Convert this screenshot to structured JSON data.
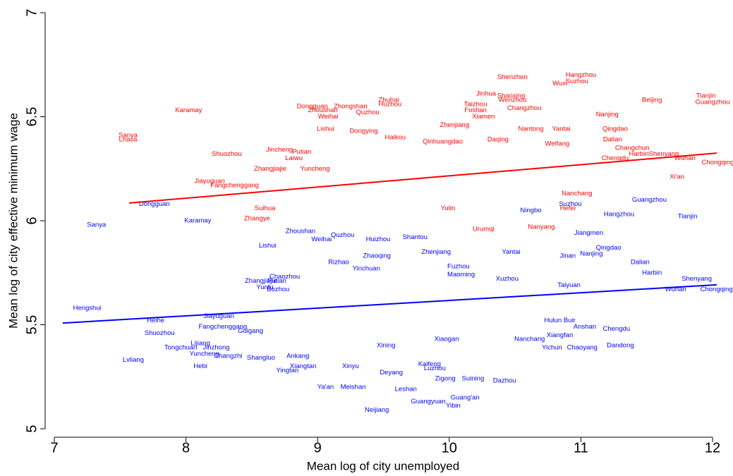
{
  "chart_data": {
    "type": "scatter",
    "x_label": "Mean log of city unemployed",
    "y_label": "Mean log of city effective minimum wage",
    "xlim": [
      7,
      12
    ],
    "xticks": [
      7,
      8,
      9,
      10,
      11,
      12
    ],
    "ylim": [
      5,
      7
    ],
    "yticks": [
      5,
      5.5,
      6,
      6.5,
      7
    ],
    "series": [
      {
        "color": "#ff0000",
        "labels": [
          "Hangzhou",
          "Shenzhen",
          "Wuxi",
          "Suzhou",
          "Jinhua",
          "Shaoxing",
          "Wenzhou",
          "Tianjin",
          "Guangzhou",
          "Beijing",
          "Zhuhai",
          "Huzhou",
          "Taizhou",
          "Foshan",
          "Changzhou",
          "Dongguan",
          "Zhongshan",
          "Zhoushan",
          "Weihai",
          "Quzhou",
          "Karamay",
          "Xiamen",
          "Nanjing",
          "Zhenjiang",
          "Lishui",
          "Dongying",
          "Nantong",
          "Yantai",
          "Qingdao",
          "Dalian",
          "Changchun",
          "Sanya",
          "Lhasa",
          "Haikou",
          "Daqing",
          "Weifang",
          "Qinhuangdao",
          "Jincheng",
          "Putian",
          "Laiwu",
          "Shuozhou",
          "Harbin",
          "Shenyang",
          "Wuhan",
          "Chengdu",
          "Chongqing",
          "Xi'an",
          "Zhangjiajie",
          "Yuncheng",
          "Jiayuguan",
          "Fangchenggang",
          "Nanchang",
          "Suihua",
          "Hefei",
          "Zhangye",
          "Urumqi",
          "Nanyang",
          "Yulin"
        ],
        "x": [
          11.0,
          10.48,
          10.84,
          10.97,
          10.28,
          10.47,
          10.48,
          11.95,
          12.0,
          11.54,
          9.54,
          9.55,
          10.2,
          10.2,
          10.57,
          8.96,
          9.25,
          9.04,
          9.08,
          9.38,
          8.02,
          10.26,
          11.2,
          10.04,
          9.06,
          9.35,
          10.62,
          10.85,
          11.26,
          11.24,
          11.39,
          7.56,
          7.56,
          9.59,
          10.37,
          10.82,
          9.95,
          8.71,
          8.88,
          8.82,
          8.31,
          11.44,
          11.63,
          11.79,
          11.26,
          12.04,
          11.73,
          8.64,
          8.98,
          8.18,
          8.37,
          10.97,
          8.6,
          10.9,
          8.54,
          10.26,
          10.7,
          9.99
        ],
        "y": [
          6.7,
          6.69,
          6.66,
          6.67,
          6.61,
          6.6,
          6.58,
          6.6,
          6.57,
          6.58,
          6.58,
          6.56,
          6.56,
          6.53,
          6.54,
          6.55,
          6.55,
          6.53,
          6.5,
          6.52,
          6.53,
          6.5,
          6.51,
          6.46,
          6.44,
          6.43,
          6.44,
          6.44,
          6.44,
          6.39,
          6.35,
          6.41,
          6.39,
          6.4,
          6.39,
          6.37,
          6.38,
          6.34,
          6.33,
          6.3,
          6.32,
          6.32,
          6.32,
          6.3,
          6.3,
          6.28,
          6.21,
          6.25,
          6.25,
          6.19,
          6.17,
          6.13,
          6.06,
          6.06,
          6.01,
          5.96,
          5.97,
          6.06
        ]
      },
      {
        "color": "#0000ff",
        "labels": [
          "Dongguan",
          "Sanya",
          "Karamay",
          "Hengshui",
          "Heihe",
          "Shuozhou",
          "Lvliang",
          "Tongchuan",
          "Hebi",
          "Yuncheng",
          "Changzhi",
          "Lijiang",
          "Jinzhong",
          "Fangchenggang",
          "Guigang",
          "Jiayuguan",
          "Zhangjiajie",
          "Yunfu",
          "Lishui",
          "Zhoushan",
          "Weihai",
          "Quzhou",
          "Rizhao",
          "Chaozhou",
          "Putian",
          "Bozhou",
          "Huizhou",
          "Shantou",
          "Zhaoqing",
          "Yinchuan",
          "Zhenjiang",
          "Fuzhou",
          "Maoming",
          "Yantai",
          "Jinan",
          "Qingdao",
          "Nanjing",
          "Dalian",
          "Harbin",
          "Shenyang",
          "Wuhan",
          "Chongqing",
          "Tianjin",
          "Guangzhou",
          "Hangzhou",
          "Suzhou",
          "Ningbo",
          "Jiangmen",
          "Taiyuan",
          "Xuzhou",
          "Anshan",
          "Chengdu",
          "Dandong",
          "Chaoyang",
          "Xiangfan",
          "Hulun Buir",
          "Nanchang",
          "Yichun",
          "Xiaogan",
          "Xining",
          "Xinyu",
          "Xiangtan",
          "Yingtan",
          "Shangluo",
          "Ankang",
          "Kaifeng",
          "Luzhou",
          "Deyang",
          "Zigong",
          "Suining",
          "Dazhou",
          "Ya'an",
          "Meishan",
          "Leshan",
          "Guang'an",
          "Guangyuan",
          "Yibin",
          "Neijiang"
        ],
        "x": [
          7.76,
          7.32,
          8.09,
          7.25,
          7.77,
          7.8,
          7.6,
          7.96,
          8.11,
          8.14,
          8.32,
          8.11,
          8.23,
          8.28,
          8.49,
          8.25,
          8.57,
          8.6,
          8.62,
          8.87,
          9.03,
          9.19,
          9.16,
          8.75,
          8.69,
          8.7,
          9.46,
          9.74,
          9.45,
          9.37,
          9.9,
          10.07,
          10.09,
          10.47,
          10.9,
          11.21,
          11.08,
          11.45,
          11.54,
          11.88,
          11.72,
          12.03,
          11.81,
          11.52,
          11.29,
          10.92,
          10.62,
          11.06,
          10.91,
          10.44,
          11.03,
          11.27,
          11.3,
          11.01,
          10.84,
          10.84,
          10.61,
          10.78,
          9.98,
          9.52,
          9.25,
          8.89,
          8.77,
          8.57,
          8.85,
          9.85,
          9.89,
          9.56,
          9.97,
          10.18,
          10.42,
          9.06,
          9.27,
          9.67,
          10.12,
          9.84,
          10.03,
          9.45
        ],
        "y": [
          6.08,
          5.98,
          6.0,
          5.58,
          5.52,
          5.46,
          5.33,
          5.39,
          5.3,
          5.36,
          5.35,
          5.41,
          5.39,
          5.49,
          5.47,
          5.54,
          5.71,
          5.68,
          5.88,
          5.95,
          5.91,
          5.93,
          5.8,
          5.73,
          5.71,
          5.67,
          5.91,
          5.92,
          5.83,
          5.77,
          5.85,
          5.78,
          5.74,
          5.85,
          5.83,
          5.87,
          5.84,
          5.8,
          5.75,
          5.72,
          5.67,
          5.67,
          6.02,
          6.1,
          6.03,
          6.08,
          6.05,
          5.94,
          5.69,
          5.72,
          5.49,
          5.48,
          5.4,
          5.39,
          5.45,
          5.52,
          5.43,
          5.39,
          5.43,
          5.4,
          5.3,
          5.3,
          5.28,
          5.34,
          5.35,
          5.31,
          5.29,
          5.27,
          5.24,
          5.24,
          5.23,
          5.2,
          5.2,
          5.19,
          5.15,
          5.13,
          5.11,
          5.09
        ]
      }
    ],
    "fit_lines": [
      {
        "color": "#ff0000",
        "x": [
          7.568,
          12.032
        ],
        "y": [
          6.085,
          6.325
        ]
      },
      {
        "color": "#0000ff",
        "x": [
          7.064,
          12.032
        ],
        "y": [
          5.508,
          5.692
        ]
      }
    ]
  }
}
